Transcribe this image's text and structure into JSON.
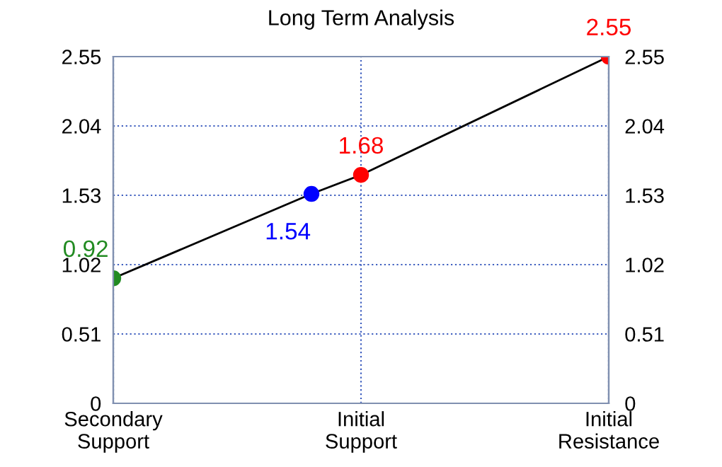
{
  "chart_data": {
    "type": "line",
    "title": "Long Term Analysis",
    "categories": [
      "Secondary\nSupport",
      null,
      null,
      null,
      null,
      "Initial\nSupport",
      null,
      null,
      null,
      null,
      "Initial\nResistance"
    ],
    "ylim": [
      0,
      2.55
    ],
    "yticks": [
      0,
      0.51,
      1.02,
      1.53,
      2.04,
      2.55
    ],
    "y2lim": [
      0,
      2.55
    ],
    "y2ticks": [
      0,
      0.51,
      1.02,
      1.53,
      2.04,
      2.55
    ],
    "grid": true,
    "marker": "circle",
    "series": [
      {
        "color": "#000000",
        "line_style": "solid",
        "values": [
          0.92,
          null,
          null,
          null,
          1.54,
          1.68,
          null,
          null,
          null,
          null,
          2.55
        ],
        "value_labels": [
          "0.92",
          null,
          null,
          null,
          "1.54",
          "1.68",
          null,
          null,
          null,
          null,
          "2.55"
        ],
        "colors": [
          "#228b22",
          null,
          null,
          null,
          "#0000ff",
          "#ff0000",
          null,
          null,
          null,
          null,
          "#ff0000"
        ]
      }
    ]
  }
}
